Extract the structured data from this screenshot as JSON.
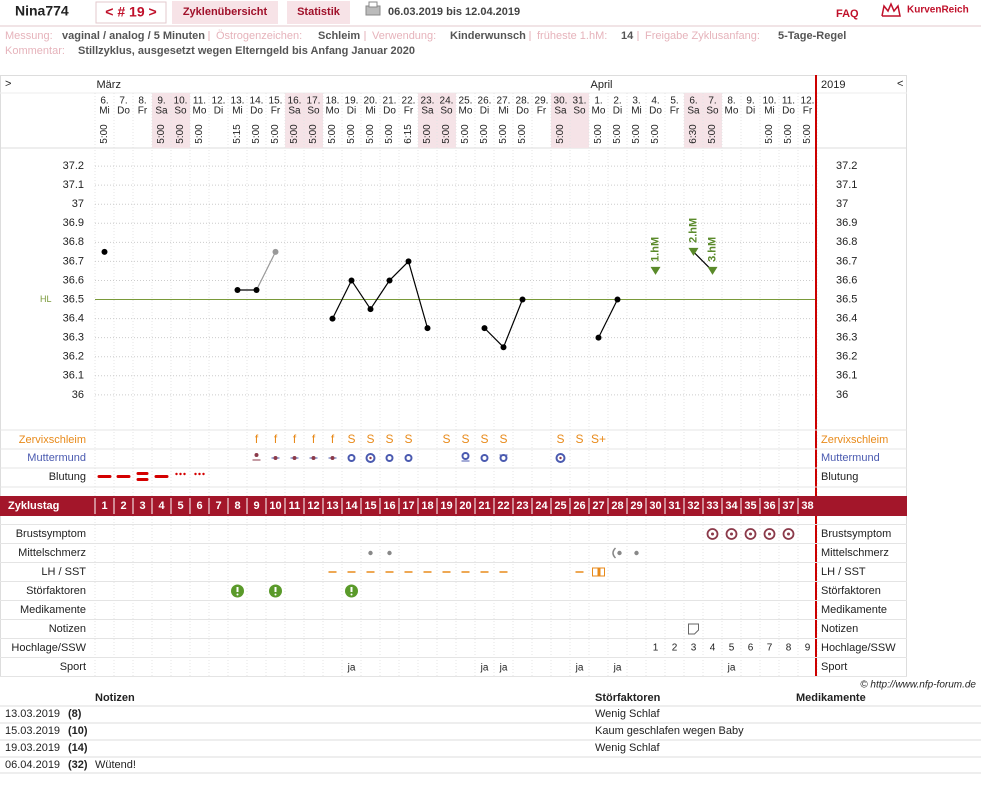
{
  "header": {
    "user": "Nina774",
    "cycle": "< # 19 >",
    "tabs": [
      "Zyklenübersicht",
      "Statistik"
    ],
    "period": "06.03.2019 bis 12.04.2019",
    "faq": "FAQ",
    "logo": "KurvenReich"
  },
  "info": [
    {
      "label": "Messung:",
      "value": "vaginal / analog / 5 Minuten"
    },
    {
      "label": "Östrogenzeichen:",
      "value": "Schleim"
    },
    {
      "label": "Verwendung:",
      "value": "Kinderwunsch"
    },
    {
      "label": "früheste 1.hM:",
      "value": "14"
    },
    {
      "label": "Freigabe Zyklusanfang:",
      "value": "5-Tage-Regel"
    }
  ],
  "comment": {
    "label": "Kommentar:",
    "value": "Stillzyklus, ausgesetzt wegen Elterngeld bis Anfang Januar 2020"
  },
  "calendar": {
    "nav_left": ">",
    "nav_right": "<",
    "year": "2019",
    "months": [
      "März",
      "April"
    ],
    "dates": [
      {
        "day": "6.",
        "weekday": "Mi",
        "time": "5:00"
      },
      {
        "day": "7.",
        "weekday": "Do",
        "time": null
      },
      {
        "day": "8.",
        "weekday": "Fr",
        "time": null
      },
      {
        "day": "9.",
        "weekday": "Sa",
        "time": "5:00"
      },
      {
        "day": "10.",
        "weekday": "So",
        "time": "5:00"
      },
      {
        "day": "11.",
        "weekday": "Mo",
        "time": "5:00"
      },
      {
        "day": "12.",
        "weekday": "Di",
        "time": null
      },
      {
        "day": "13.",
        "weekday": "Mi",
        "time": "5:15"
      },
      {
        "day": "14.",
        "weekday": "Do",
        "time": "5:00"
      },
      {
        "day": "15.",
        "weekday": "Fr",
        "time": "5:00"
      },
      {
        "day": "16.",
        "weekday": "Sa",
        "time": "5:00"
      },
      {
        "day": "17.",
        "weekday": "So",
        "time": "5:00"
      },
      {
        "day": "18.",
        "weekday": "Mo",
        "time": "5:00"
      },
      {
        "day": "19.",
        "weekday": "Di",
        "time": "5:00"
      },
      {
        "day": "20.",
        "weekday": "Mi",
        "time": "5:00"
      },
      {
        "day": "21.",
        "weekday": "Do",
        "time": "5:00"
      },
      {
        "day": "22.",
        "weekday": "Fr",
        "time": "6:15"
      },
      {
        "day": "23.",
        "weekday": "Sa",
        "time": "5:00"
      },
      {
        "day": "24.",
        "weekday": "So",
        "time": "5:00"
      },
      {
        "day": "25.",
        "weekday": "Mo",
        "time": "5:00"
      },
      {
        "day": "26.",
        "weekday": "Di",
        "time": "5:00"
      },
      {
        "day": "27.",
        "weekday": "Mi",
        "time": "5:00"
      },
      {
        "day": "28.",
        "weekday": "Do",
        "time": "5:00"
      },
      {
        "day": "29.",
        "weekday": "Fr",
        "time": null
      },
      {
        "day": "30.",
        "weekday": "Sa",
        "time": "5:00"
      },
      {
        "day": "31.",
        "weekday": "So",
        "time": null
      },
      {
        "day": "1.",
        "weekday": "Mo",
        "time": "5:00"
      },
      {
        "day": "2.",
        "weekday": "Di",
        "time": "5:00"
      },
      {
        "day": "3.",
        "weekday": "Mi",
        "time": "5:00"
      },
      {
        "day": "4.",
        "weekday": "Do",
        "time": "5:00"
      },
      {
        "day": "5.",
        "weekday": "Fr",
        "time": null
      },
      {
        "day": "6.",
        "weekday": "Sa",
        "time": "6:30"
      },
      {
        "day": "7.",
        "weekday": "So",
        "time": "5:00"
      },
      {
        "day": "8.",
        "weekday": "Mo",
        "time": null
      },
      {
        "day": "9.",
        "weekday": "Di",
        "time": null
      },
      {
        "day": "10.",
        "weekday": "Mi",
        "time": "5:00"
      },
      {
        "day": "11.",
        "weekday": "Do",
        "time": "5:00"
      },
      {
        "day": "12.",
        "weekday": "Fr",
        "time": "5:00"
      }
    ]
  },
  "chart_data": {
    "type": "line",
    "x": [
      1,
      2,
      3,
      4,
      5,
      6,
      7,
      8,
      9,
      10,
      11,
      12,
      13,
      14,
      15,
      16,
      17,
      18,
      19,
      20,
      21,
      22,
      23,
      24,
      25,
      26,
      27,
      28,
      29,
      30,
      31,
      32,
      33,
      34,
      35,
      36,
      37,
      38
    ],
    "xlim": [
      0.5,
      38.5
    ],
    "ylim": [
      35.8,
      37.3
    ],
    "yticks": [
      36,
      36.1,
      36.2,
      36.3,
      36.4,
      36.5,
      36.6,
      36.7,
      36.8,
      36.9,
      37,
      37.1,
      37.2
    ],
    "grid": true,
    "series": [
      {
        "color": "#000000",
        "excluded_color": "#999999",
        "excluded": [
          10
        ],
        "values": [
          36.75,
          null,
          null,
          null,
          null,
          null,
          null,
          36.55,
          36.55,
          36.75,
          null,
          null,
          36.4,
          36.6,
          36.45,
          36.6,
          36.7,
          36.35,
          null,
          null,
          36.35,
          36.25,
          36.5,
          null,
          null,
          null,
          36.3,
          36.5,
          null,
          36.65,
          null,
          36.75,
          36.65,
          null,
          null,
          null,
          null,
          null
        ]
      }
    ],
    "coverline": {
      "label": "HL",
      "value": 36.5,
      "color": "#7a9a3a"
    },
    "annotations": [
      {
        "text": "1.hM",
        "x": 30
      },
      {
        "text": "2.hM",
        "x": 32
      },
      {
        "text": "3.hM",
        "x": 33
      }
    ],
    "annotation_color": "#5a8a2a"
  },
  "cycle_day_label": "Zyklustag",
  "symptoms": {
    "zervixschleim": {
      "label": "Zervixschleim",
      "values": [
        null,
        null,
        null,
        null,
        null,
        null,
        null,
        null,
        "f",
        "f",
        "f",
        "f",
        "f",
        "S",
        "S",
        "S",
        "S",
        null,
        "S",
        "S",
        "S",
        "S",
        null,
        null,
        "S",
        "S",
        "S+",
        null,
        null,
        null,
        null,
        null,
        null,
        null,
        null,
        null,
        null,
        null
      ]
    },
    "muttermund": {
      "label": "Muttermund"
    },
    "blutung": {
      "label": "Blutung"
    }
  },
  "rows": [
    {
      "label": "Brustsymptom"
    },
    {
      "label": "Mittelschmerz"
    },
    {
      "label": "LH / SST"
    },
    {
      "label": "Störfaktoren"
    },
    {
      "label": "Medikamente"
    },
    {
      "label": "Notizen"
    },
    {
      "label": "Hochlage/SSW",
      "values": [
        null,
        null,
        null,
        null,
        null,
        null,
        null,
        null,
        null,
        null,
        null,
        null,
        null,
        null,
        null,
        null,
        null,
        null,
        null,
        null,
        null,
        null,
        null,
        null,
        null,
        null,
        null,
        null,
        null,
        1,
        2,
        3,
        4,
        5,
        6,
        7,
        8,
        9
      ]
    },
    {
      "label": "Sport",
      "values": [
        null,
        null,
        null,
        null,
        null,
        null,
        null,
        null,
        null,
        null,
        null,
        null,
        null,
        "ja",
        null,
        null,
        null,
        null,
        null,
        null,
        "ja",
        "ja",
        null,
        null,
        null,
        "ja",
        null,
        "ja",
        null,
        null,
        null,
        null,
        null,
        "ja",
        null,
        null,
        null,
        null
      ]
    }
  ],
  "copyright": "© http://www.nfp-forum.de",
  "notes_table": {
    "headers": [
      "Notizen",
      "Störfaktoren",
      "Medikamente"
    ],
    "rows": [
      [
        "13.03.2019",
        "(8)",
        null,
        "Wenig Schlaf"
      ],
      [
        "15.03.2019",
        "(10)",
        null,
        "Kaum geschlafen wegen Baby"
      ],
      [
        "19.03.2019",
        "(14)",
        null,
        "Wenig Schlaf"
      ],
      [
        "06.04.2019",
        "(32)",
        "Wütend!",
        null
      ]
    ]
  }
}
